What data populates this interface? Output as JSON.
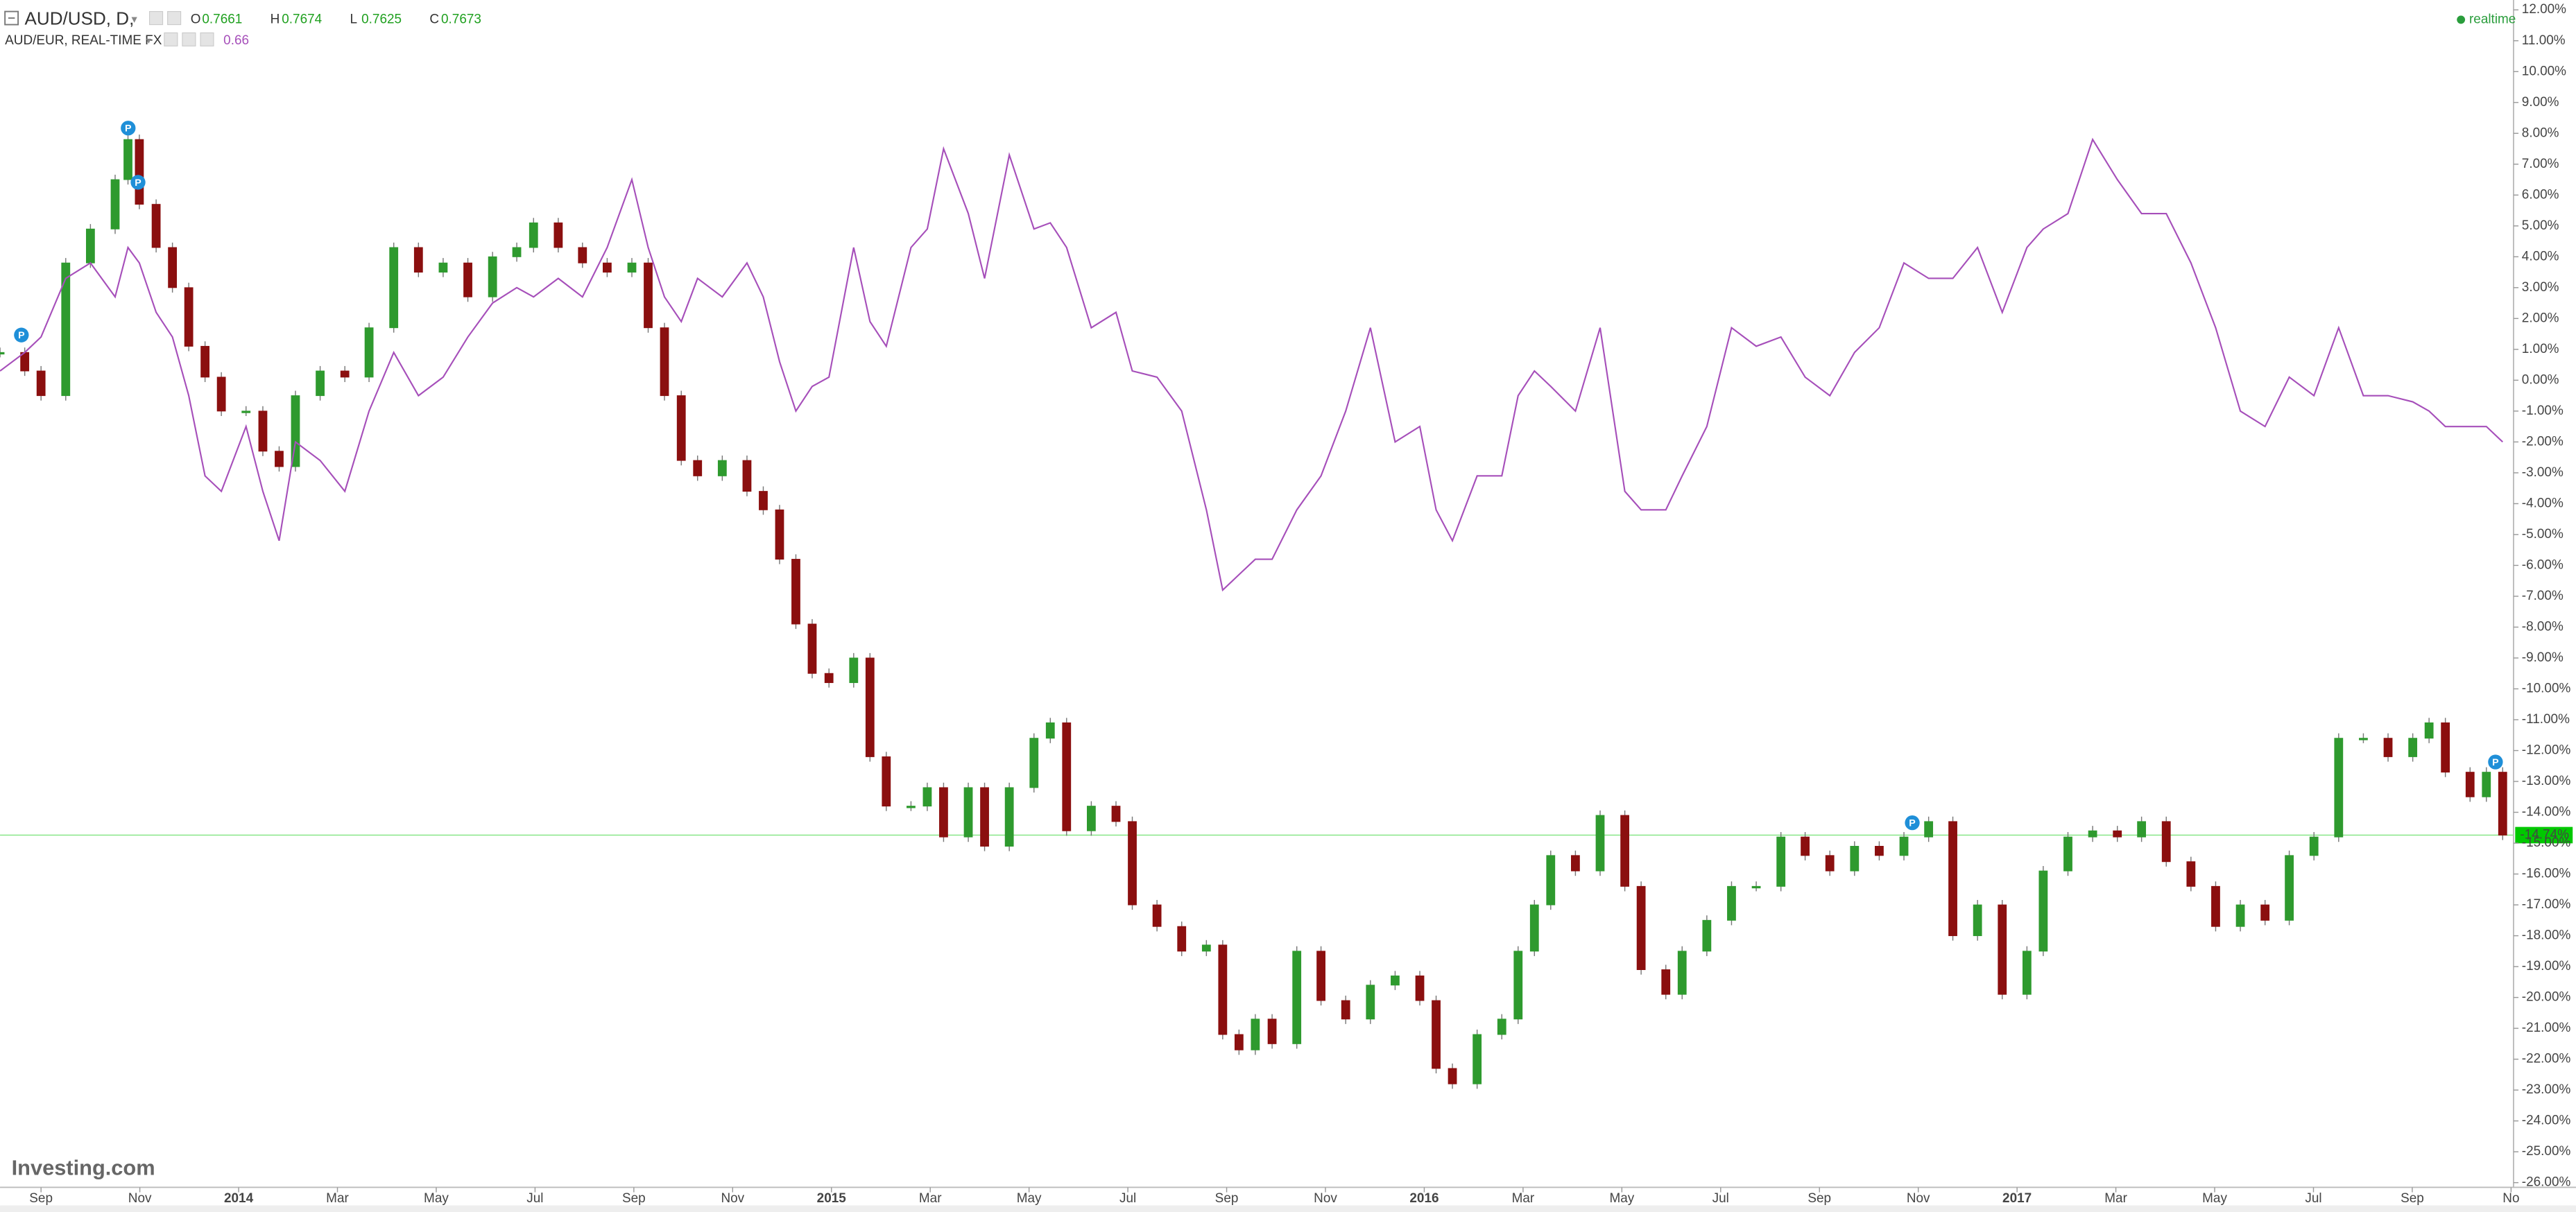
{
  "chart_data": {
    "type": "candlestick",
    "quote": [
      {
        "key": "O",
        "value": 0.7661
      },
      {
        "key": "H",
        "value": 0.7674
      },
      {
        "key": "L",
        "value": 0.7625
      },
      {
        "key": "C",
        "value": 0.7673
      }
    ],
    "compare_value": 0.66,
    "status": "realtime",
    "watermark": "Investing.com",
    "event_marker_label": "P",
    "current_value": {
      "value": -14.74,
      "label": "-14.74%"
    },
    "current_color": "#00c800",
    "xlim": [
      -0.83,
      50.05
    ],
    "ylim": [
      -26.1,
      12.32
    ],
    "xticks": [
      {
        "value": 0,
        "label": "Sep"
      },
      {
        "value": 2,
        "label": "Nov"
      },
      {
        "value": 4,
        "label": "2014"
      },
      {
        "value": 6,
        "label": "Mar"
      },
      {
        "value": 8,
        "label": "May"
      },
      {
        "value": 10,
        "label": "Jul"
      },
      {
        "value": 12,
        "label": "Sep"
      },
      {
        "value": 14,
        "label": "Nov"
      },
      {
        "value": 16,
        "label": "2015"
      },
      {
        "value": 18,
        "label": "Mar"
      },
      {
        "value": 20,
        "label": "May"
      },
      {
        "value": 22,
        "label": "Jul"
      },
      {
        "value": 24,
        "label": "Sep"
      },
      {
        "value": 26,
        "label": "Nov"
      },
      {
        "value": 28,
        "label": "2016"
      },
      {
        "value": 30,
        "label": "Mar"
      },
      {
        "value": 32,
        "label": "May"
      },
      {
        "value": 34,
        "label": "Jul"
      },
      {
        "value": 36,
        "label": "Sep"
      },
      {
        "value": 38,
        "label": "Nov"
      },
      {
        "value": 40,
        "label": "2017"
      },
      {
        "value": 42,
        "label": "Mar"
      },
      {
        "value": 44,
        "label": "May"
      },
      {
        "value": 46,
        "label": "Jul"
      },
      {
        "value": 48,
        "label": "Sep"
      },
      {
        "value": 50,
        "label": "No"
      }
    ],
    "yticks": [
      {
        "value": 12,
        "label": "12.00%"
      },
      {
        "value": 11,
        "label": "11.00%"
      },
      {
        "value": 10,
        "label": "10.00%"
      },
      {
        "value": 9,
        "label": "9.00%"
      },
      {
        "value": 8,
        "label": "8.00%"
      },
      {
        "value": 7,
        "label": "7.00%"
      },
      {
        "value": 6,
        "label": "6.00%"
      },
      {
        "value": 5,
        "label": "5.00%"
      },
      {
        "value": 4,
        "label": "4.00%"
      },
      {
        "value": 3,
        "label": "3.00%"
      },
      {
        "value": 2,
        "label": "2.00%"
      },
      {
        "value": 1,
        "label": "1.00%"
      },
      {
        "value": 0,
        "label": "0.00%"
      },
      {
        "value": -1,
        "label": "-1.00%"
      },
      {
        "value": -2,
        "label": "-2.00%"
      },
      {
        "value": -3,
        "label": "-3.00%"
      },
      {
        "value": -4,
        "label": "-4.00%"
      },
      {
        "value": -5,
        "label": "-5.00%"
      },
      {
        "value": -6,
        "label": "-6.00%"
      },
      {
        "value": -7,
        "label": "-7.00%"
      },
      {
        "value": -8,
        "label": "-8.00%"
      },
      {
        "value": -9,
        "label": "-9.00%"
      },
      {
        "value": -10,
        "label": "-10.00%"
      },
      {
        "value": -11,
        "label": "-11.00%"
      },
      {
        "value": -12,
        "label": "-12.00%"
      },
      {
        "value": -13,
        "label": "-13.00%"
      },
      {
        "value": -14,
        "label": "-14.00%"
      },
      {
        "value": -15,
        "label": "-15.00%"
      },
      {
        "value": -16,
        "label": "-16.00%"
      },
      {
        "value": -17,
        "label": "-17.00%"
      },
      {
        "value": -18,
        "label": "-18.00%"
      },
      {
        "value": -19,
        "label": "-19.00%"
      },
      {
        "value": -20,
        "label": "-20.00%"
      },
      {
        "value": -21,
        "label": "-21.00%"
      },
      {
        "value": -22,
        "label": "-22.00%"
      },
      {
        "value": -23,
        "label": "-23.00%"
      },
      {
        "value": -24,
        "label": "-24.00%"
      },
      {
        "value": -25,
        "label": "-25.00%"
      },
      {
        "value": -26,
        "label": "-26.00%"
      }
    ],
    "x": [
      -0.83,
      -0.33,
      0,
      0.5,
      1,
      1.5,
      1.76,
      1.99,
      2.33,
      2.66,
      2.99,
      3.32,
      3.65,
      4.15,
      4.49,
      4.82,
      5.15,
      5.65,
      6.15,
      6.64,
      7.14,
      7.64,
      8.14,
      8.64,
      9.14,
      9.63,
      9.97,
      10.47,
      10.96,
      11.46,
      11.96,
      12.29,
      12.62,
      12.96,
      13.29,
      13.79,
      14.29,
      14.62,
      14.95,
      15.28,
      15.61,
      15.95,
      16.45,
      16.78,
      17.11,
      17.61,
      17.94,
      18.27,
      18.77,
      19.1,
      19.6,
      20.1,
      20.43,
      20.76,
      21.26,
      21.76,
      22.09,
      22.59,
      23.09,
      23.59,
      23.92,
      24.25,
      24.58,
      24.92,
      25.42,
      25.91,
      26.41,
      26.91,
      27.41,
      27.91,
      28.24,
      28.57,
      29.07,
      29.57,
      29.9,
      30.23,
      30.56,
      31.06,
      31.56,
      32.06,
      32.39,
      32.89,
      33.22,
      33.72,
      34.22,
      34.72,
      35.22,
      35.71,
      36.21,
      36.71,
      37.21,
      37.71,
      38.21,
      38.7,
      39.2,
      39.7,
      40.2,
      40.53,
      41.03,
      41.53,
      42.03,
      42.52,
      43.02,
      43.52,
      44.02,
      44.52,
      45.02,
      45.51,
      46.01,
      46.51,
      47.01,
      47.51,
      48.01,
      48.34,
      48.67,
      49.17,
      49.5,
      49.83
    ],
    "series": [
      {
        "name": "AUD/USD, D,",
        "type": "candlestick",
        "color": "#2e9a2e",
        "down_color": "#8b0f0f",
        "values": [
          0.9,
          0.3,
          -0.5,
          3.8,
          4.9,
          6.5,
          7.8,
          5.7,
          4.3,
          3.0,
          1.1,
          0.1,
          -1.0,
          -1.0,
          -2.3,
          -2.8,
          -0.5,
          0.3,
          0.1,
          1.7,
          4.3,
          3.5,
          3.8,
          2.7,
          4.0,
          4.3,
          5.1,
          4.3,
          3.8,
          3.5,
          3.8,
          1.7,
          -0.5,
          -2.6,
          -3.1,
          -2.6,
          -3.6,
          -4.2,
          -5.8,
          -7.9,
          -9.5,
          -9.8,
          -9.0,
          -12.2,
          -13.8,
          -13.8,
          -13.2,
          -14.8,
          -13.2,
          -15.1,
          -13.2,
          -11.6,
          -11.1,
          -14.6,
          -13.8,
          -14.3,
          -17.0,
          -17.7,
          -18.5,
          -18.3,
          -21.2,
          -21.7,
          -20.7,
          -21.5,
          -18.5,
          -20.1,
          -20.7,
          -19.6,
          -19.3,
          -20.1,
          -22.3,
          -22.8,
          -21.2,
          -20.7,
          -18.5,
          -17.0,
          -15.4,
          -15.9,
          -14.1,
          -16.4,
          -19.1,
          -19.9,
          -18.5,
          -17.5,
          -16.4,
          -16.4,
          -14.8,
          -15.4,
          -15.9,
          -15.1,
          -15.4,
          -14.8,
          -14.3,
          -18.0,
          -17.0,
          -19.9,
          -18.5,
          -15.9,
          -14.8,
          -14.6,
          -14.8,
          -14.3,
          -15.6,
          -16.4,
          -17.7,
          -17.0,
          -17.5,
          -15.4,
          -14.8,
          -11.6,
          -11.6,
          -12.2,
          -11.6,
          -11.1,
          -12.7,
          -13.5,
          -12.7,
          -14.74
        ]
      },
      {
        "name": "AUD/EUR, REAL-TIME FX",
        "type": "line",
        "color": "#a64fba",
        "values": [
          0.3,
          0.9,
          1.4,
          3.3,
          3.8,
          2.7,
          4.3,
          3.8,
          2.2,
          1.4,
          -0.5,
          -3.1,
          -3.6,
          -1.5,
          -3.6,
          -5.2,
          -2.0,
          -2.6,
          -3.6,
          -1.0,
          0.9,
          -0.5,
          0.1,
          1.4,
          2.5,
          3.0,
          2.7,
          3.3,
          2.7,
          4.3,
          6.5,
          4.3,
          2.7,
          1.9,
          3.3,
          2.7,
          3.8,
          2.7,
          0.6,
          -1.0,
          -0.2,
          0.1,
          4.3,
          1.9,
          1.1,
          4.3,
          4.9,
          7.5,
          5.4,
          3.3,
          7.3,
          4.9,
          5.1,
          4.3,
          1.7,
          2.2,
          0.3,
          0.1,
          -1.0,
          -4.2,
          -6.8,
          -6.3,
          -5.8,
          -5.8,
          -4.2,
          -3.1,
          -1.0,
          1.7,
          -2.0,
          -1.5,
          -4.2,
          -5.2,
          -3.1,
          -3.1,
          -0.5,
          0.3,
          -0.2,
          -1.0,
          1.7,
          -3.6,
          -4.2,
          -4.2,
          -3.1,
          -1.5,
          1.7,
          1.1,
          1.4,
          0.1,
          -0.5,
          0.9,
          1.7,
          3.8,
          3.3,
          3.3,
          4.3,
          2.2,
          4.3,
          4.9,
          5.4,
          7.8,
          6.5,
          5.4,
          5.4,
          3.8,
          1.7,
          -1.0,
          -1.5,
          0.1,
          -0.5,
          1.7,
          -0.5,
          -0.5,
          -0.7,
          -1.0,
          -1.5,
          -1.5,
          -1.5,
          -2.0
        ]
      }
    ]
  }
}
